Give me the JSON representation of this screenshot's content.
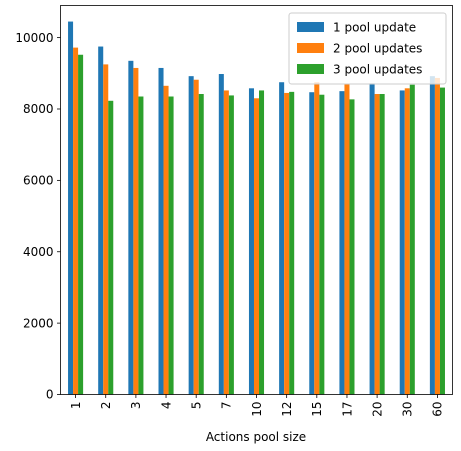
{
  "chart_data": {
    "type": "bar",
    "xlabel": "Actions pool size",
    "ylabel": "",
    "ylim": [
      0,
      10900
    ],
    "yticks": [
      0,
      2000,
      4000,
      6000,
      8000,
      10000
    ],
    "grid": false,
    "legend_position": "top-right",
    "categories": [
      "1",
      "2",
      "3",
      "4",
      "5",
      "7",
      "10",
      "12",
      "15",
      "17",
      "20",
      "30",
      "60"
    ],
    "series": [
      {
        "name": "1 pool update",
        "color": "#1f77b4",
        "values": [
          10450,
          9750,
          9350,
          9150,
          8920,
          8980,
          8580,
          8750,
          8470,
          8500,
          8720,
          8520,
          8920
        ]
      },
      {
        "name": "2 pool updates",
        "color": "#ff7f0e",
        "values": [
          9720,
          9250,
          9150,
          8650,
          8820,
          8520,
          8300,
          8450,
          8750,
          8700,
          8420,
          8580,
          8870
        ]
      },
      {
        "name": "3 pool updates",
        "color": "#2ca02c",
        "values": [
          9520,
          8230,
          8350,
          8350,
          8420,
          8380,
          8520,
          8480,
          8400,
          8270,
          8420,
          8680,
          8600
        ]
      }
    ]
  }
}
